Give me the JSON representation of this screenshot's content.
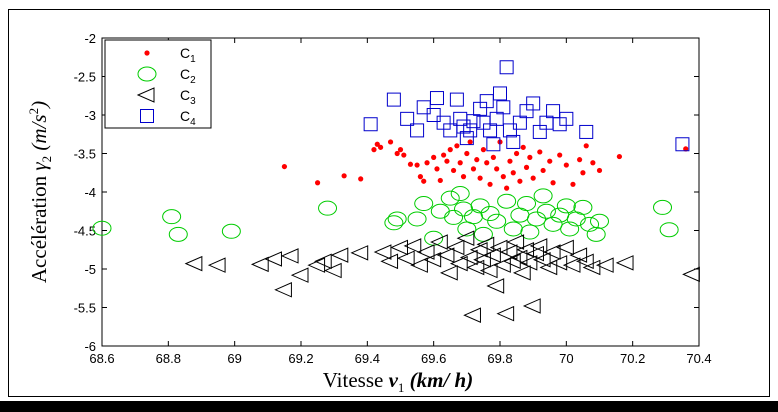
{
  "chart_data": {
    "type": "scatter",
    "xlabel": "Vitesse v₁ (km/ h)",
    "xlabel_parts": {
      "main": "Vitesse ",
      "var": "v",
      "sub": "1",
      "unit": " (km/ h)"
    },
    "ylabel": "Accélération γ₂ (m/s²)",
    "ylabel_parts": {
      "main": "Accélération ",
      "var": "γ",
      "sub": "2",
      "unit_open": " (m/s",
      "sup": "2",
      "unit_close": ")"
    },
    "xlim": [
      68.6,
      70.4
    ],
    "ylim": [
      -6,
      -2
    ],
    "xticks": [
      68.6,
      68.8,
      69,
      69.2,
      69.4,
      69.6,
      69.8,
      70,
      70.2,
      70.4
    ],
    "xtick_labels": [
      "68.6",
      "68.8",
      "69",
      "69.2",
      "69.4",
      "69.6",
      "69.8",
      "70",
      "70.2",
      "70.4"
    ],
    "yticks": [
      -6,
      -5.5,
      -5,
      -4.5,
      -4,
      -3.5,
      -3,
      -2.5,
      -2
    ],
    "ytick_labels": [
      "-6",
      "-5.5",
      "-5",
      "-4.5",
      "-4",
      "-3.5",
      "-3",
      "-2.5",
      "-2"
    ],
    "grid": false,
    "legend_position": "top-left",
    "series": [
      {
        "name": "C1",
        "legend_main": "C",
        "legend_sub": "1",
        "marker": "dot",
        "color": "#ff0000",
        "points": [
          [
            69.15,
            -3.67
          ],
          [
            69.25,
            -3.88
          ],
          [
            69.33,
            -3.79
          ],
          [
            69.38,
            -3.83
          ],
          [
            69.42,
            -3.45
          ],
          [
            69.43,
            -3.38
          ],
          [
            69.44,
            -3.42
          ],
          [
            69.47,
            -3.35
          ],
          [
            69.49,
            -3.5
          ],
          [
            69.5,
            -3.45
          ],
          [
            69.51,
            -3.52
          ],
          [
            69.53,
            -3.64
          ],
          [
            69.55,
            -3.65
          ],
          [
            69.56,
            -3.8
          ],
          [
            69.57,
            -3.86
          ],
          [
            69.58,
            -3.62
          ],
          [
            69.6,
            -3.55
          ],
          [
            69.61,
            -3.7
          ],
          [
            69.62,
            -3.85
          ],
          [
            69.63,
            -3.52
          ],
          [
            69.64,
            -3.6
          ],
          [
            69.65,
            -3.45
          ],
          [
            69.66,
            -3.72
          ],
          [
            69.67,
            -3.4
          ],
          [
            69.68,
            -3.62
          ],
          [
            69.69,
            -3.8
          ],
          [
            69.7,
            -3.5
          ],
          [
            69.71,
            -3.35
          ],
          [
            69.72,
            -3.7
          ],
          [
            69.73,
            -3.58
          ],
          [
            69.74,
            -3.82
          ],
          [
            69.75,
            -3.45
          ],
          [
            69.76,
            -3.62
          ],
          [
            69.77,
            -3.9
          ],
          [
            69.78,
            -3.55
          ],
          [
            69.79,
            -3.7
          ],
          [
            69.8,
            -3.35
          ],
          [
            69.81,
            -3.8
          ],
          [
            69.82,
            -3.95
          ],
          [
            69.83,
            -3.6
          ],
          [
            69.84,
            -3.75
          ],
          [
            69.85,
            -3.5
          ],
          [
            69.86,
            -3.86
          ],
          [
            69.87,
            -3.42
          ],
          [
            69.88,
            -3.68
          ],
          [
            69.89,
            -3.55
          ],
          [
            69.9,
            -3.82
          ],
          [
            69.92,
            -3.48
          ],
          [
            69.93,
            -3.72
          ],
          [
            69.95,
            -3.6
          ],
          [
            69.96,
            -3.88
          ],
          [
            69.98,
            -3.52
          ],
          [
            70.0,
            -3.65
          ],
          [
            70.02,
            -3.9
          ],
          [
            70.04,
            -3.58
          ],
          [
            70.05,
            -3.75
          ],
          [
            70.06,
            -3.4
          ],
          [
            70.08,
            -3.62
          ],
          [
            70.1,
            -3.72
          ],
          [
            70.16,
            -3.54
          ],
          [
            70.36,
            -3.44
          ]
        ]
      },
      {
        "name": "C2",
        "legend_main": "C",
        "legend_sub": "2",
        "marker": "circle",
        "color": "#00cc00",
        "points": [
          [
            68.6,
            -4.47
          ],
          [
            68.81,
            -4.32
          ],
          [
            68.83,
            -4.55
          ],
          [
            68.99,
            -4.51
          ],
          [
            69.28,
            -4.21
          ],
          [
            69.48,
            -4.4
          ],
          [
            69.49,
            -4.35
          ],
          [
            69.55,
            -4.35
          ],
          [
            69.57,
            -4.15
          ],
          [
            69.6,
            -4.6
          ],
          [
            69.62,
            -4.25
          ],
          [
            69.65,
            -4.08
          ],
          [
            69.66,
            -4.33
          ],
          [
            69.68,
            -4.02
          ],
          [
            69.69,
            -4.22
          ],
          [
            69.7,
            -4.48
          ],
          [
            69.72,
            -4.32
          ],
          [
            69.74,
            -4.18
          ],
          [
            69.75,
            -4.55
          ],
          [
            69.77,
            -4.28
          ],
          [
            69.79,
            -4.38
          ],
          [
            69.82,
            -4.12
          ],
          [
            69.84,
            -4.48
          ],
          [
            69.86,
            -4.3
          ],
          [
            69.88,
            -4.15
          ],
          [
            69.89,
            -4.52
          ],
          [
            69.91,
            -4.35
          ],
          [
            69.93,
            -4.05
          ],
          [
            69.94,
            -4.25
          ],
          [
            69.96,
            -4.42
          ],
          [
            69.98,
            -4.3
          ],
          [
            70.0,
            -4.18
          ],
          [
            70.01,
            -4.48
          ],
          [
            70.03,
            -4.35
          ],
          [
            70.05,
            -4.2
          ],
          [
            70.07,
            -4.42
          ],
          [
            70.09,
            -4.55
          ],
          [
            70.1,
            -4.38
          ],
          [
            70.29,
            -4.2
          ],
          [
            70.31,
            -4.49
          ]
        ]
      },
      {
        "name": "C3",
        "legend_main": "C",
        "legend_sub": "3",
        "marker": "triangle-left",
        "color": "#000000",
        "points": [
          [
            68.88,
            -4.93
          ],
          [
            68.95,
            -4.95
          ],
          [
            69.08,
            -4.94
          ],
          [
            69.12,
            -4.87
          ],
          [
            69.15,
            -5.27
          ],
          [
            69.17,
            -4.83
          ],
          [
            69.2,
            -5.08
          ],
          [
            69.25,
            -4.95
          ],
          [
            69.27,
            -4.9
          ],
          [
            69.3,
            -5.02
          ],
          [
            69.32,
            -4.82
          ],
          [
            69.38,
            -4.79
          ],
          [
            69.45,
            -4.78
          ],
          [
            69.47,
            -4.9
          ],
          [
            69.5,
            -4.72
          ],
          [
            69.52,
            -4.86
          ],
          [
            69.54,
            -4.7
          ],
          [
            69.56,
            -4.95
          ],
          [
            69.58,
            -4.78
          ],
          [
            69.6,
            -4.88
          ],
          [
            69.62,
            -4.65
          ],
          [
            69.64,
            -4.82
          ],
          [
            69.65,
            -5.05
          ],
          [
            69.67,
            -4.72
          ],
          [
            69.68,
            -4.93
          ],
          [
            69.7,
            -4.6
          ],
          [
            69.71,
            -4.85
          ],
          [
            69.72,
            -5.6
          ],
          [
            69.73,
            -4.98
          ],
          [
            69.74,
            -4.75
          ],
          [
            69.75,
            -4.88
          ],
          [
            69.76,
            -4.68
          ],
          [
            69.77,
            -5.02
          ],
          [
            69.78,
            -4.82
          ],
          [
            69.79,
            -5.22
          ],
          [
            69.8,
            -4.72
          ],
          [
            69.81,
            -4.95
          ],
          [
            69.82,
            -5.58
          ],
          [
            69.83,
            -4.78
          ],
          [
            69.84,
            -4.9
          ],
          [
            69.85,
            -4.65
          ],
          [
            69.86,
            -4.85
          ],
          [
            69.87,
            -5.05
          ],
          [
            69.88,
            -4.75
          ],
          [
            69.89,
            -4.92
          ],
          [
            69.9,
            -5.48
          ],
          [
            69.91,
            -4.8
          ],
          [
            69.92,
            -4.7
          ],
          [
            69.93,
            -4.88
          ],
          [
            69.95,
            -4.98
          ],
          [
            69.96,
            -4.78
          ],
          [
            69.98,
            -4.92
          ],
          [
            70.0,
            -4.72
          ],
          [
            70.02,
            -4.95
          ],
          [
            70.04,
            -4.82
          ],
          [
            70.06,
            -4.9
          ],
          [
            70.08,
            -4.98
          ],
          [
            70.12,
            -4.95
          ],
          [
            70.18,
            -4.92
          ],
          [
            70.38,
            -5.07
          ]
        ]
      },
      {
        "name": "C4",
        "legend_main": "C",
        "legend_sub": "4",
        "marker": "square",
        "color": "#0000cc",
        "points": [
          [
            69.41,
            -3.12
          ],
          [
            69.48,
            -2.8
          ],
          [
            69.52,
            -3.05
          ],
          [
            69.55,
            -3.2
          ],
          [
            69.57,
            -2.9
          ],
          [
            69.6,
            -3.0
          ],
          [
            69.61,
            -2.78
          ],
          [
            69.63,
            -3.1
          ],
          [
            69.65,
            -3.2
          ],
          [
            69.67,
            -2.8
          ],
          [
            69.68,
            -3.05
          ],
          [
            69.69,
            -3.15
          ],
          [
            69.7,
            -3.3
          ],
          [
            69.71,
            -3.2
          ],
          [
            69.72,
            -3.08
          ],
          [
            69.74,
            -2.92
          ],
          [
            69.75,
            -3.1
          ],
          [
            69.76,
            -2.82
          ],
          [
            69.77,
            -3.2
          ],
          [
            69.78,
            -3.38
          ],
          [
            69.79,
            -3.05
          ],
          [
            69.8,
            -2.72
          ],
          [
            69.81,
            -2.9
          ],
          [
            69.82,
            -2.38
          ],
          [
            69.83,
            -3.2
          ],
          [
            69.84,
            -3.35
          ],
          [
            69.86,
            -3.1
          ],
          [
            69.88,
            -2.95
          ],
          [
            69.9,
            -2.85
          ],
          [
            69.92,
            -3.22
          ],
          [
            69.94,
            -3.1
          ],
          [
            69.96,
            -2.95
          ],
          [
            69.98,
            -3.12
          ],
          [
            70.0,
            -3.05
          ],
          [
            70.06,
            -3.22
          ],
          [
            70.35,
            -3.38
          ]
        ]
      }
    ]
  }
}
